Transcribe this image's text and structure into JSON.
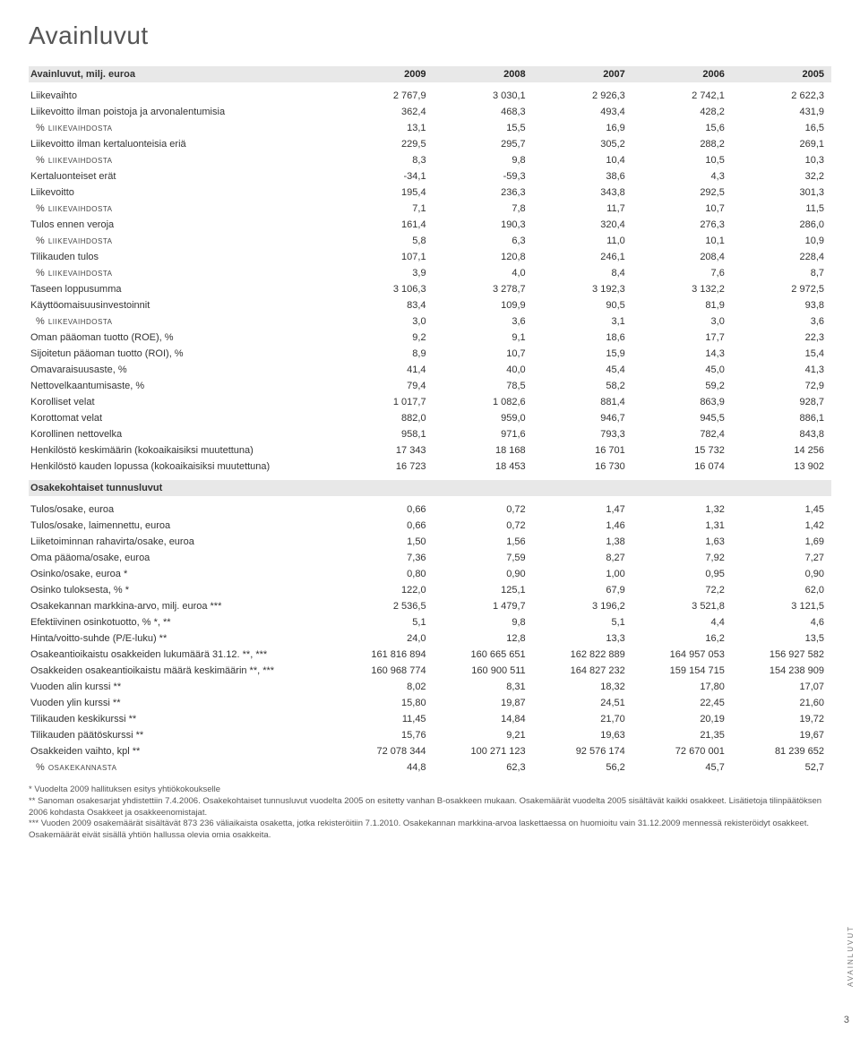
{
  "title": "Avainluvut",
  "years": [
    "2009",
    "2008",
    "2007",
    "2006",
    "2005"
  ],
  "header_label": "Avainluvut, milj. euroa",
  "section2_label": "Osakekohtaiset tunnusluvut",
  "pct_label": "% liikevaihdosta",
  "pct_osak_label": "% osakekannasta",
  "rows": [
    {
      "k": "r1",
      "l": "Liikevaihto",
      "v": [
        "2 767,9",
        "3 030,1",
        "2 926,3",
        "2 742,1",
        "2 622,3"
      ]
    },
    {
      "k": "r2",
      "l": "Liikevoitto ilman poistoja ja arvonalentumisia",
      "v": [
        "362,4",
        "468,3",
        "493,4",
        "428,2",
        "431,9"
      ]
    },
    {
      "k": "r2p",
      "pct": true,
      "v": [
        "13,1",
        "15,5",
        "16,9",
        "15,6",
        "16,5"
      ]
    },
    {
      "k": "r3",
      "l": "Liikevoitto ilman kertaluonteisia eriä",
      "v": [
        "229,5",
        "295,7",
        "305,2",
        "288,2",
        "269,1"
      ]
    },
    {
      "k": "r3p",
      "pct": true,
      "v": [
        "8,3",
        "9,8",
        "10,4",
        "10,5",
        "10,3"
      ]
    },
    {
      "k": "r4",
      "l": "Kertaluonteiset erät",
      "v": [
        "-34,1",
        "-59,3",
        "38,6",
        "4,3",
        "32,2"
      ]
    },
    {
      "k": "r5",
      "l": "Liikevoitto",
      "v": [
        "195,4",
        "236,3",
        "343,8",
        "292,5",
        "301,3"
      ]
    },
    {
      "k": "r5p",
      "pct": true,
      "v": [
        "7,1",
        "7,8",
        "11,7",
        "10,7",
        "11,5"
      ]
    },
    {
      "k": "r6",
      "l": "Tulos ennen veroja",
      "v": [
        "161,4",
        "190,3",
        "320,4",
        "276,3",
        "286,0"
      ]
    },
    {
      "k": "r6p",
      "pct": true,
      "v": [
        "5,8",
        "6,3",
        "11,0",
        "10,1",
        "10,9"
      ]
    },
    {
      "k": "r7",
      "l": "Tilikauden tulos",
      "v": [
        "107,1",
        "120,8",
        "246,1",
        "208,4",
        "228,4"
      ]
    },
    {
      "k": "r7p",
      "pct": true,
      "v": [
        "3,9",
        "4,0",
        "8,4",
        "7,6",
        "8,7"
      ]
    },
    {
      "k": "r8",
      "l": "Taseen loppusumma",
      "v": [
        "3 106,3",
        "3 278,7",
        "3 192,3",
        "3 132,2",
        "2 972,5"
      ]
    },
    {
      "k": "r9",
      "l": "Käyttöomaisuusinvestoinnit",
      "v": [
        "83,4",
        "109,9",
        "90,5",
        "81,9",
        "93,8"
      ]
    },
    {
      "k": "r9p",
      "pct": true,
      "v": [
        "3,0",
        "3,6",
        "3,1",
        "3,0",
        "3,6"
      ]
    },
    {
      "k": "r10",
      "l": "Oman pääoman tuotto (ROE), %",
      "v": [
        "9,2",
        "9,1",
        "18,6",
        "17,7",
        "22,3"
      ]
    },
    {
      "k": "r11",
      "l": "Sijoitetun pääoman tuotto (ROI), %",
      "v": [
        "8,9",
        "10,7",
        "15,9",
        "14,3",
        "15,4"
      ]
    },
    {
      "k": "r12",
      "l": "Omavaraisuusaste, %",
      "v": [
        "41,4",
        "40,0",
        "45,4",
        "45,0",
        "41,3"
      ]
    },
    {
      "k": "r13",
      "l": "Nettovelkaantumisaste, %",
      "v": [
        "79,4",
        "78,5",
        "58,2",
        "59,2",
        "72,9"
      ]
    },
    {
      "k": "r14",
      "l": "Korolliset velat",
      "v": [
        "1 017,7",
        "1 082,6",
        "881,4",
        "863,9",
        "928,7"
      ]
    },
    {
      "k": "r15",
      "l": "Korottomat velat",
      "v": [
        "882,0",
        "959,0",
        "946,7",
        "945,5",
        "886,1"
      ]
    },
    {
      "k": "r16",
      "l": "Korollinen nettovelka",
      "v": [
        "958,1",
        "971,6",
        "793,3",
        "782,4",
        "843,8"
      ]
    },
    {
      "k": "r17",
      "l": "Henkilöstö keskimäärin (kokoaikaisiksi muutettuna)",
      "v": [
        "17 343",
        "18 168",
        "16 701",
        "15 732",
        "14 256"
      ]
    },
    {
      "k": "r18",
      "l": "Henkilöstö kauden lopussa (kokoaikaisiksi muutettuna)",
      "v": [
        "16 723",
        "18 453",
        "16 730",
        "16 074",
        "13 902"
      ]
    }
  ],
  "rows2": [
    {
      "k": "s1",
      "l": "Tulos/osake, euroa",
      "v": [
        "0,66",
        "0,72",
        "1,47",
        "1,32",
        "1,45"
      ]
    },
    {
      "k": "s2",
      "l": "Tulos/osake, laimennettu, euroa",
      "v": [
        "0,66",
        "0,72",
        "1,46",
        "1,31",
        "1,42"
      ]
    },
    {
      "k": "s3",
      "l": "Liiketoiminnan rahavirta/osake, euroa",
      "v": [
        "1,50",
        "1,56",
        "1,38",
        "1,63",
        "1,69"
      ]
    },
    {
      "k": "s4",
      "l": "Oma pääoma/osake, euroa",
      "v": [
        "7,36",
        "7,59",
        "8,27",
        "7,92",
        "7,27"
      ]
    },
    {
      "k": "s5",
      "l": "Osinko/osake, euroa *",
      "v": [
        "0,80",
        "0,90",
        "1,00",
        "0,95",
        "0,90"
      ]
    },
    {
      "k": "s6",
      "l": "Osinko tuloksesta, % *",
      "v": [
        "122,0",
        "125,1",
        "67,9",
        "72,2",
        "62,0"
      ]
    },
    {
      "k": "s7",
      "l": "Osakekannan markkina-arvo, milj. euroa ***",
      "v": [
        "2 536,5",
        "1 479,7",
        "3 196,2",
        "3 521,8",
        "3 121,5"
      ]
    },
    {
      "k": "s8",
      "l": "Efektiivinen osinkotuotto, % *, **",
      "v": [
        "5,1",
        "9,8",
        "5,1",
        "4,4",
        "4,6"
      ]
    },
    {
      "k": "s9",
      "l": "Hinta/voitto-suhde (P/E-luku) **",
      "v": [
        "24,0",
        "12,8",
        "13,3",
        "16,2",
        "13,5"
      ]
    },
    {
      "k": "s10",
      "l": "Osakeantioikaistu osakkeiden lukumäärä 31.12. **, ***",
      "v": [
        "161 816 894",
        "160 665 651",
        "162 822 889",
        "164 957 053",
        "156 927 582"
      ]
    },
    {
      "k": "s11",
      "l": "Osakkeiden osakeantioikaistu määrä keskimäärin **, ***",
      "v": [
        "160 968 774",
        "160 900 511",
        "164 827 232",
        "159 154 715",
        "154 238 909"
      ]
    },
    {
      "k": "s12",
      "l": "Vuoden alin kurssi **",
      "v": [
        "8,02",
        "8,31",
        "18,32",
        "17,80",
        "17,07"
      ]
    },
    {
      "k": "s13",
      "l": "Vuoden ylin kurssi **",
      "v": [
        "15,80",
        "19,87",
        "24,51",
        "22,45",
        "21,60"
      ]
    },
    {
      "k": "s14",
      "l": "Tilikauden keskikurssi **",
      "v": [
        "11,45",
        "14,84",
        "21,70",
        "20,19",
        "19,72"
      ]
    },
    {
      "k": "s15",
      "l": "Tilikauden päätöskurssi **",
      "v": [
        "15,76",
        "9,21",
        "19,63",
        "21,35",
        "19,67"
      ]
    },
    {
      "k": "s16",
      "l": "Osakkeiden vaihto, kpl **",
      "v": [
        "72 078 344",
        "100 271 123",
        "92 576 174",
        "72 670 001",
        "81 239 652"
      ]
    },
    {
      "k": "s16p",
      "pct_osak": true,
      "v": [
        "44,8",
        "62,3",
        "56,2",
        "45,7",
        "52,7"
      ]
    }
  ],
  "footnotes": [
    "* Vuodelta 2009 hallituksen esitys yhtiökokoukselle",
    "** Sanoman osakesarjat yhdistettiin 7.4.2006. Osakekohtaiset tunnusluvut vuodelta 2005 on esitetty vanhan B-osakkeen mukaan. Osakemäärät vuodelta 2005 sisältävät kaikki osakkeet. Lisätietoja tilinpäätöksen 2006 kohdasta Osakkeet ja osakkeenomistajat.",
    "*** Vuoden 2009 osakemäärät sisältävät 873 236 väliaikaista osaketta, jotka rekisteröitiin 7.1.2010. Osakekannan markkina-arvoa laskettaessa on huomioitu vain 31.12.2009 mennessä rekisteröidyt osakkeet. Osakemäärät eivät sisällä yhtiön hallussa olevia omia osakkeita."
  ],
  "side_tag": "AVAINLUVUT",
  "page_num": "3",
  "colors": {
    "header_bg": "#e8e8e8",
    "text": "#333333",
    "title": "#555555"
  }
}
